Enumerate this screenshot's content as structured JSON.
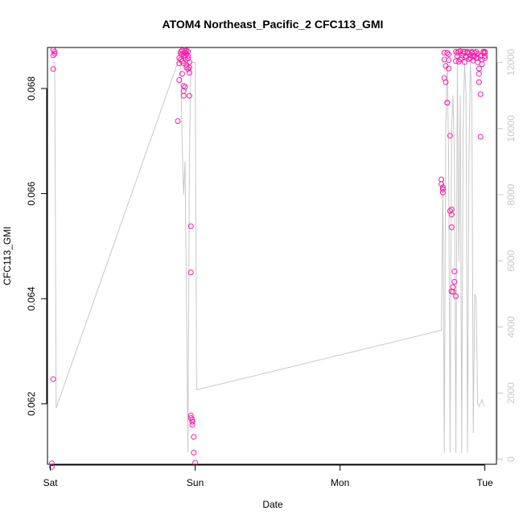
{
  "chart_data": {
    "type": "scatter",
    "title": "ATOM4 Northeast_Pacific_2 CFC113_GMI",
    "xlabel": "Date",
    "ylabel": "CFC113_GMI",
    "x_ticks": [
      "Sat",
      "Sun",
      "Mon",
      "Tue"
    ],
    "xlim": [
      -0.02,
      3.08
    ],
    "ylim": [
      0.06085,
      0.06878
    ],
    "y_ticks": [
      "0.062",
      "0.064",
      "0.066",
      "0.068"
    ],
    "y2lim": [
      -150,
      12450
    ],
    "y2_ticks": [
      "0",
      "2000",
      "4000",
      "6000",
      "8000",
      "10000",
      "12000"
    ],
    "grid": false,
    "colors": {
      "points": "#ff1aa8",
      "line": "#c8c8c8"
    },
    "series": [
      {
        "axis": "left",
        "style": "points",
        "x": [
          0.01,
          0.01,
          0.02,
          0.02,
          0.03,
          0.03,
          0.02,
          0.02,
          0.88,
          0.89,
          0.89,
          0.89,
          0.9,
          0.9,
          0.9,
          0.91,
          0.91,
          0.91,
          0.91,
          0.92,
          0.92,
          0.92,
          0.92,
          0.92,
          0.93,
          0.93,
          0.93,
          0.93,
          0.93,
          0.94,
          0.94,
          0.94,
          0.94,
          0.95,
          0.95,
          0.95,
          0.95,
          0.96,
          0.96,
          0.96,
          0.96,
          0.97,
          0.97,
          0.97,
          0.97,
          0.98,
          0.98,
          0.98,
          0.99,
          0.99,
          1.0,
          2.7,
          2.7,
          2.71,
          2.71,
          2.71,
          2.72,
          2.72,
          2.72,
          2.73,
          2.73,
          2.74,
          2.74,
          2.74,
          2.75,
          2.75,
          2.75,
          2.76,
          2.76,
          2.77,
          2.77,
          2.77,
          2.77,
          2.78,
          2.78,
          2.79,
          2.79,
          2.8,
          2.8,
          2.8,
          2.81,
          2.81,
          2.82,
          2.82,
          2.83,
          2.83,
          2.84,
          2.84,
          2.85,
          2.85,
          2.86,
          2.86,
          2.87,
          2.87,
          2.88,
          2.88,
          2.89,
          2.89,
          2.9,
          2.9,
          2.91,
          2.91,
          2.92,
          2.92,
          2.93,
          2.93,
          2.94,
          2.94,
          2.95,
          2.95,
          2.95,
          2.96,
          2.96,
          2.96,
          2.97,
          2.97,
          2.97,
          2.98,
          2.98,
          2.99,
          2.99,
          3.0,
          3.0,
          3.0,
          3.0
        ],
        "y": [
          0.0608,
          0.06087,
          0.06247,
          0.06837,
          0.06866,
          0.0687,
          0.06873,
          0.06863,
          0.06738,
          0.06816,
          0.06848,
          0.06858,
          0.0687,
          0.06866,
          0.06855,
          0.06828,
          0.06872,
          0.06865,
          0.06852,
          0.06848,
          0.06862,
          0.06795,
          0.06805,
          0.06786,
          0.06868,
          0.06871,
          0.06863,
          0.06858,
          0.06803,
          0.06872,
          0.06866,
          0.06845,
          0.0684,
          0.0687,
          0.06862,
          0.06857,
          0.06837,
          0.0683,
          0.0685,
          0.0684,
          0.06786,
          0.06538,
          0.0645,
          0.06173,
          0.06178,
          0.0617,
          0.06166,
          0.0616,
          0.06137,
          0.06107,
          0.06088,
          0.06627,
          0.06618,
          0.06612,
          0.06602,
          0.06608,
          0.06868,
          0.06855,
          0.0682,
          0.06843,
          0.06812,
          0.06773,
          0.06773,
          0.06868,
          0.06854,
          0.06865,
          0.06838,
          0.0671,
          0.06567,
          0.0656,
          0.0657,
          0.06536,
          0.06414,
          0.06413,
          0.06422,
          0.06452,
          0.06432,
          0.06405,
          0.0687,
          0.06852,
          0.06862,
          0.06868,
          0.06851,
          0.0687,
          0.06871,
          0.06855,
          0.06858,
          0.06863,
          0.0687,
          0.06866,
          0.0685,
          0.0687,
          0.06862,
          0.06859,
          0.06868,
          0.0687,
          0.06856,
          0.06866,
          0.06863,
          0.06858,
          0.0687,
          0.06868,
          0.06862,
          0.06853,
          0.06868,
          0.06862,
          0.06858,
          0.0687,
          0.06866,
          0.0685,
          0.06858,
          0.06838,
          0.06828,
          0.06812,
          0.06789,
          0.06708,
          0.06862,
          0.06855,
          0.06846,
          0.0687,
          0.06868,
          0.06862,
          0.06858,
          0.0687,
          0.06868
        ]
      },
      {
        "axis": "right",
        "style": "line",
        "x": [
          0.02,
          0.03,
          0.04,
          0.88,
          0.89,
          0.9,
          0.91,
          0.92,
          0.93,
          0.95,
          0.96,
          0.97,
          0.98,
          0.99,
          1.0,
          1.01,
          2.7,
          2.71,
          2.72,
          2.73,
          2.74,
          2.75,
          2.76,
          2.77,
          2.78,
          2.79,
          2.8,
          2.81,
          2.82,
          2.83,
          2.84,
          2.85,
          2.86,
          2.87,
          2.88,
          2.89,
          2.9,
          2.91,
          2.92,
          2.93,
          2.94,
          2.95,
          2.96,
          2.97,
          2.98,
          2.99,
          3.0
        ],
        "y": [
          12000,
          12000,
          1550,
          12000,
          12000,
          12000,
          9500,
          8000,
          9000,
          200,
          9000,
          12000,
          12000,
          12000,
          12000,
          2100,
          3900,
          8500,
          200,
          10000,
          12000,
          9000,
          200,
          10000,
          11000,
          9000,
          200,
          12000,
          6000,
          11000,
          200,
          10000,
          12000,
          11000,
          200,
          9000,
          12000,
          11000,
          800,
          5000,
          4900,
          1700,
          1600,
          1700,
          1800,
          1650,
          1600
        ]
      }
    ]
  }
}
